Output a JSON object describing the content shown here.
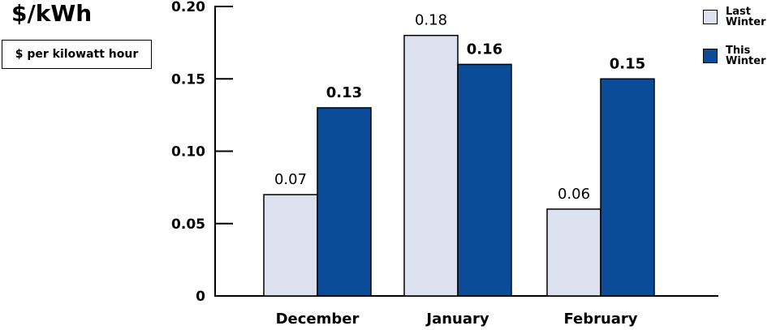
{
  "header": {
    "unit_title": "$/kWh",
    "unit_box": "$ per kilowatt hour"
  },
  "legend": {
    "items": [
      {
        "label": "Last Winter",
        "color": "#dde0ef"
      },
      {
        "label": "This Winter",
        "color": "#0a4c97"
      }
    ]
  },
  "chart_data": {
    "type": "bar",
    "categories": [
      "December",
      "January",
      "February"
    ],
    "series": [
      {
        "name": "Last Winter",
        "values": [
          0.07,
          0.18,
          0.06
        ],
        "color": "#dde0ef",
        "label_bold": false
      },
      {
        "name": "This Winter",
        "values": [
          0.13,
          0.16,
          0.15
        ],
        "color": "#0a4c97",
        "label_bold": true
      }
    ],
    "yticks": [
      "0",
      "0.05",
      "0.10",
      "0.15",
      "0.20"
    ],
    "ytick_values": [
      0,
      0.05,
      0.1,
      0.15,
      0.2
    ],
    "ylim": [
      0,
      0.2
    ],
    "grid": false,
    "legend_position": "top-right"
  }
}
